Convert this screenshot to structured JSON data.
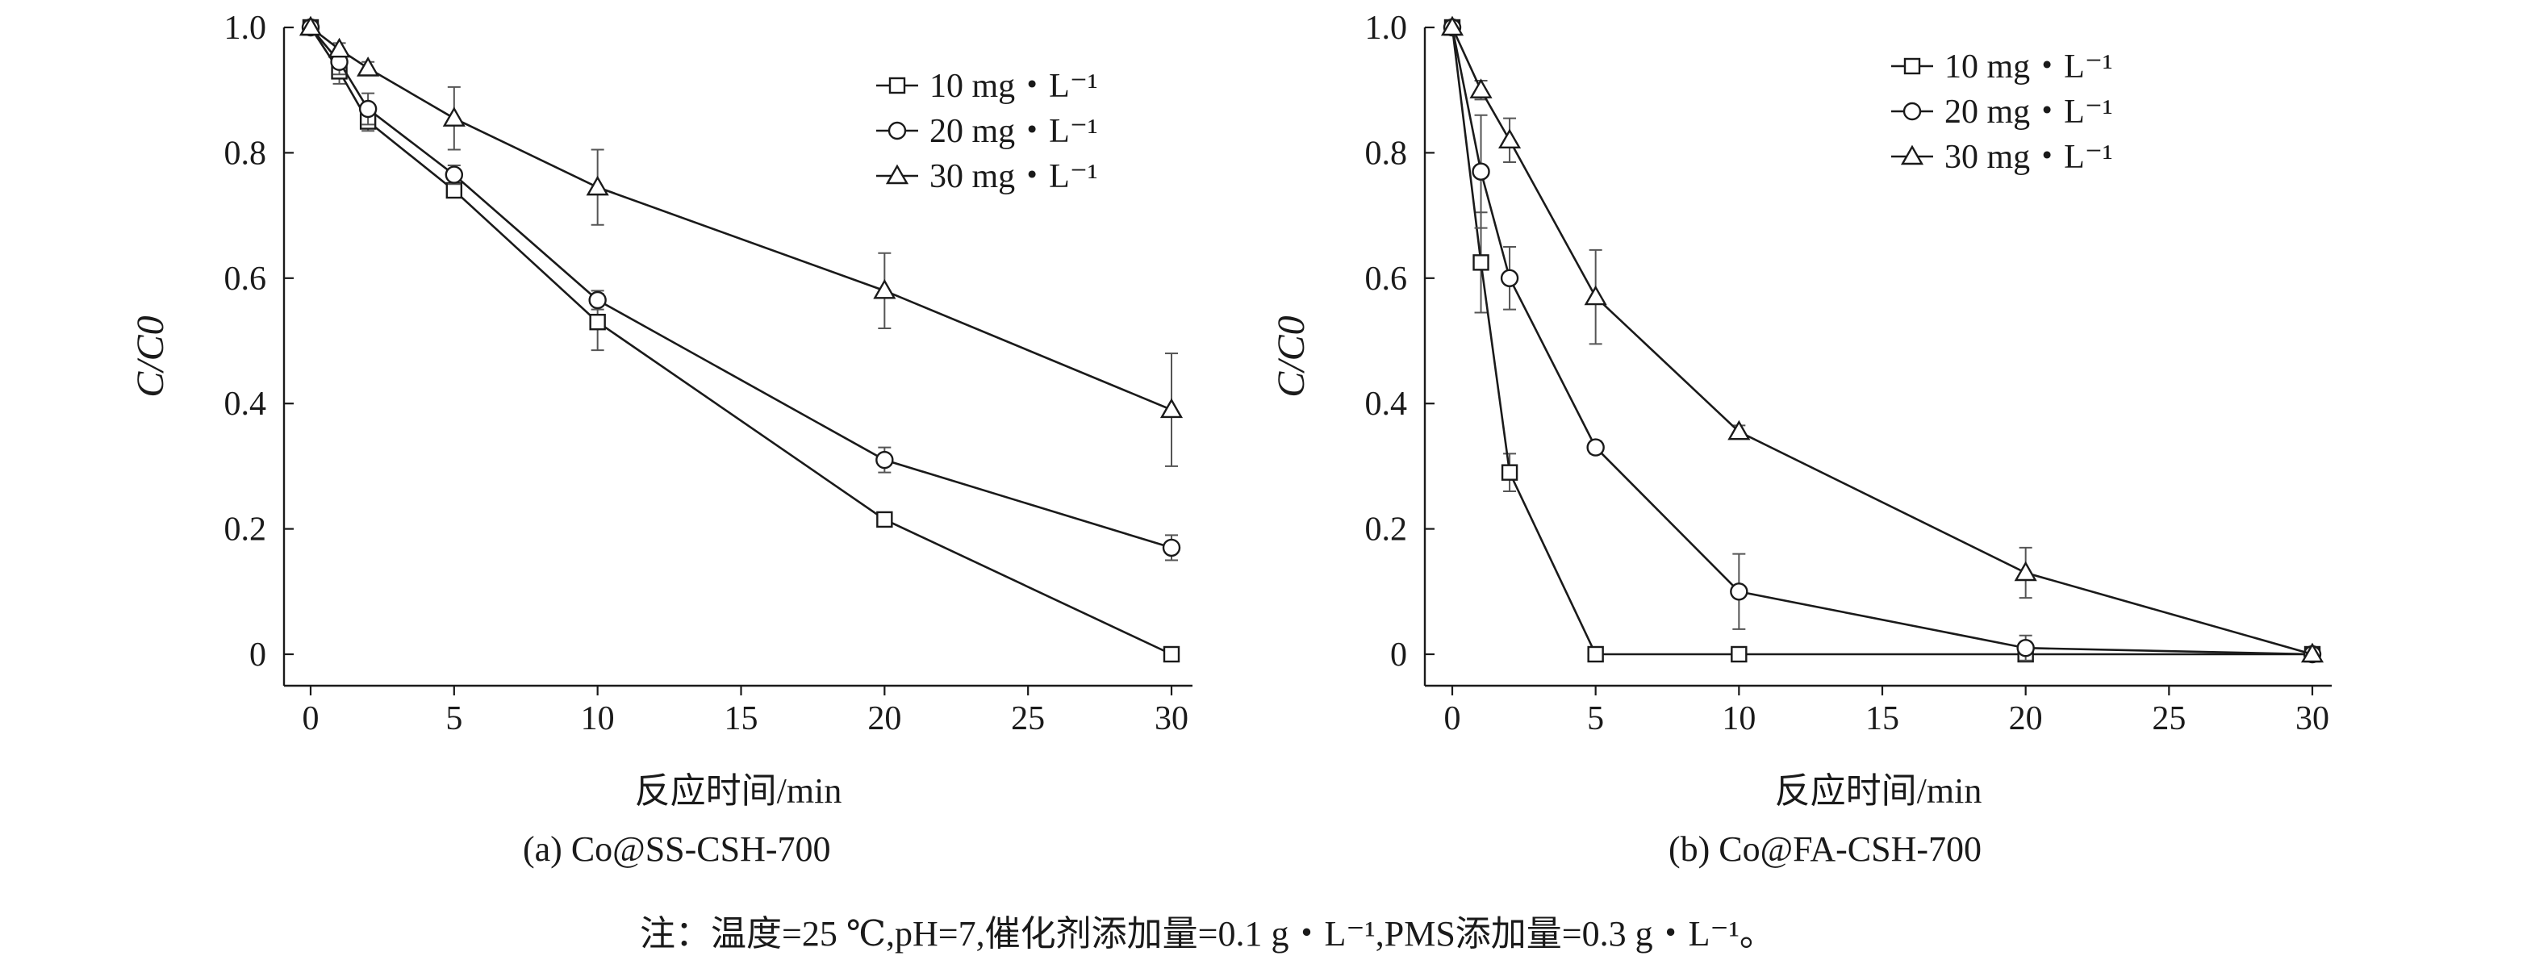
{
  "captions": {
    "a": "(a) Co@SS-CSH-700",
    "b": "(b) Co@FA-CSH-700"
  },
  "note": "注：温度=25 ℃,pH=7,催化剂添加量=0.1 g・L⁻¹,PMS添加量=0.3 g・L⁻¹。",
  "chart_data": [
    {
      "type": "line",
      "panel": "(a) Co@SS-CSH-700",
      "xlabel": "反应时间/min",
      "ylabel": "C/C0",
      "xlim": [
        -1,
        30.5
      ],
      "ylim": [
        -0.05,
        1.0
      ],
      "xticks": [
        0,
        5,
        10,
        15,
        20,
        25,
        30
      ],
      "yticks": [
        0,
        0.2,
        0.4,
        0.6,
        0.8,
        1.0
      ],
      "ytick_labels": [
        "0",
        "0.2",
        "0.4",
        "0.6",
        "0.8",
        "1.0"
      ],
      "legend_position": "top-right",
      "series": [
        {
          "name": "10 mg・L⁻¹",
          "marker": "square",
          "x": [
            0,
            1,
            2,
            5,
            10,
            20,
            30
          ],
          "y": [
            1.0,
            0.93,
            0.85,
            0.74,
            0.53,
            0.215,
            0.0
          ],
          "err": [
            0,
            0.02,
            0.015,
            0.01,
            0.045,
            0.01,
            0
          ]
        },
        {
          "name": "20 mg・L⁻¹",
          "marker": "circle",
          "x": [
            0,
            1,
            2,
            5,
            10,
            20,
            30
          ],
          "y": [
            1.0,
            0.945,
            0.87,
            0.765,
            0.565,
            0.31,
            0.17
          ],
          "err": [
            0,
            0.02,
            0.025,
            0.015,
            0.015,
            0.02,
            0.02
          ]
        },
        {
          "name": "30 mg・L⁻¹",
          "marker": "triangle",
          "x": [
            0,
            1,
            2,
            5,
            10,
            20,
            30
          ],
          "y": [
            1.0,
            0.965,
            0.935,
            0.855,
            0.745,
            0.58,
            0.39
          ],
          "err": [
            0,
            0.01,
            0.01,
            0.05,
            0.06,
            0.06,
            0.09
          ]
        }
      ]
    },
    {
      "type": "line",
      "panel": "(b) Co@FA-CSH-700",
      "xlabel": "反应时间/min",
      "ylabel": "C/C0",
      "xlim": [
        -1,
        30.5
      ],
      "ylim": [
        -0.05,
        1.0
      ],
      "xticks": [
        0,
        5,
        10,
        15,
        20,
        25,
        30
      ],
      "yticks": [
        0,
        0.2,
        0.4,
        0.6,
        0.8,
        1.0
      ],
      "ytick_labels": [
        "0",
        "0.2",
        "0.4",
        "0.6",
        "0.8",
        "1.0"
      ],
      "legend_position": "top-center",
      "series": [
        {
          "name": "10 mg・L⁻¹",
          "marker": "square",
          "x": [
            0,
            1,
            2,
            5,
            10,
            20,
            30
          ],
          "y": [
            1.0,
            0.625,
            0.29,
            0.0,
            0.0,
            0.0,
            0.0
          ],
          "err": [
            0,
            0.08,
            0.03,
            0,
            0,
            0,
            0
          ]
        },
        {
          "name": "20 mg・L⁻¹",
          "marker": "circle",
          "x": [
            0,
            1,
            2,
            5,
            10,
            20,
            30
          ],
          "y": [
            1.0,
            0.77,
            0.6,
            0.33,
            0.1,
            0.01,
            0.0
          ],
          "err": [
            0,
            0.09,
            0.05,
            0.01,
            0.06,
            0.02,
            0
          ]
        },
        {
          "name": "30 mg・L⁻¹",
          "marker": "triangle",
          "x": [
            0,
            1,
            2,
            5,
            10,
            20,
            30
          ],
          "y": [
            1.0,
            0.9,
            0.82,
            0.57,
            0.355,
            0.13,
            0.0
          ],
          "err": [
            0,
            0.015,
            0.035,
            0.075,
            0.01,
            0.04,
            0
          ]
        }
      ]
    }
  ]
}
